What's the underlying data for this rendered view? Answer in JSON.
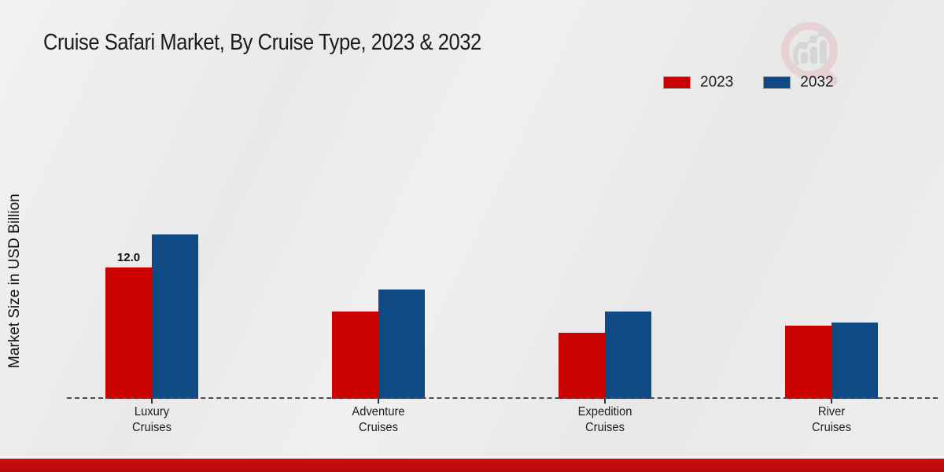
{
  "title": "Cruise Safari Market, By Cruise Type, 2023 & 2032",
  "y_axis_label": "Market Size in USD Billion",
  "legend": {
    "items": [
      {
        "label": "2023",
        "color": "#c90101"
      },
      {
        "label": "2032",
        "color": "#104a85"
      }
    ]
  },
  "watermark_icon": "magnifier-bar-chart-logo",
  "colors": {
    "series_2023": "#c90101",
    "series_2032": "#104a85",
    "footer_band": "#c00b0b",
    "axis_dash": "#4d4d4d",
    "background": "#ececec"
  },
  "chart_data": {
    "type": "bar",
    "title": "Cruise Safari Market, By Cruise Type, 2023 & 2032",
    "xlabel": "",
    "ylabel": "Market Size in USD Billion",
    "categories": [
      "Luxury Cruises",
      "Adventure Cruises",
      "Expedition Cruises",
      "River Cruises"
    ],
    "series": [
      {
        "name": "2023",
        "color": "#c90101",
        "values": [
          12.0,
          8.0,
          6.0,
          6.7
        ]
      },
      {
        "name": "2032",
        "color": "#104a85",
        "values": [
          15.0,
          10.0,
          8.0,
          7.0
        ]
      }
    ],
    "data_labels": [
      {
        "series": "2023",
        "category": "Luxury Cruises",
        "text": "12.0"
      }
    ],
    "ylim": [
      0,
      16
    ],
    "grid": false,
    "legend_position": "top-right",
    "baseline_style": "dashed"
  }
}
